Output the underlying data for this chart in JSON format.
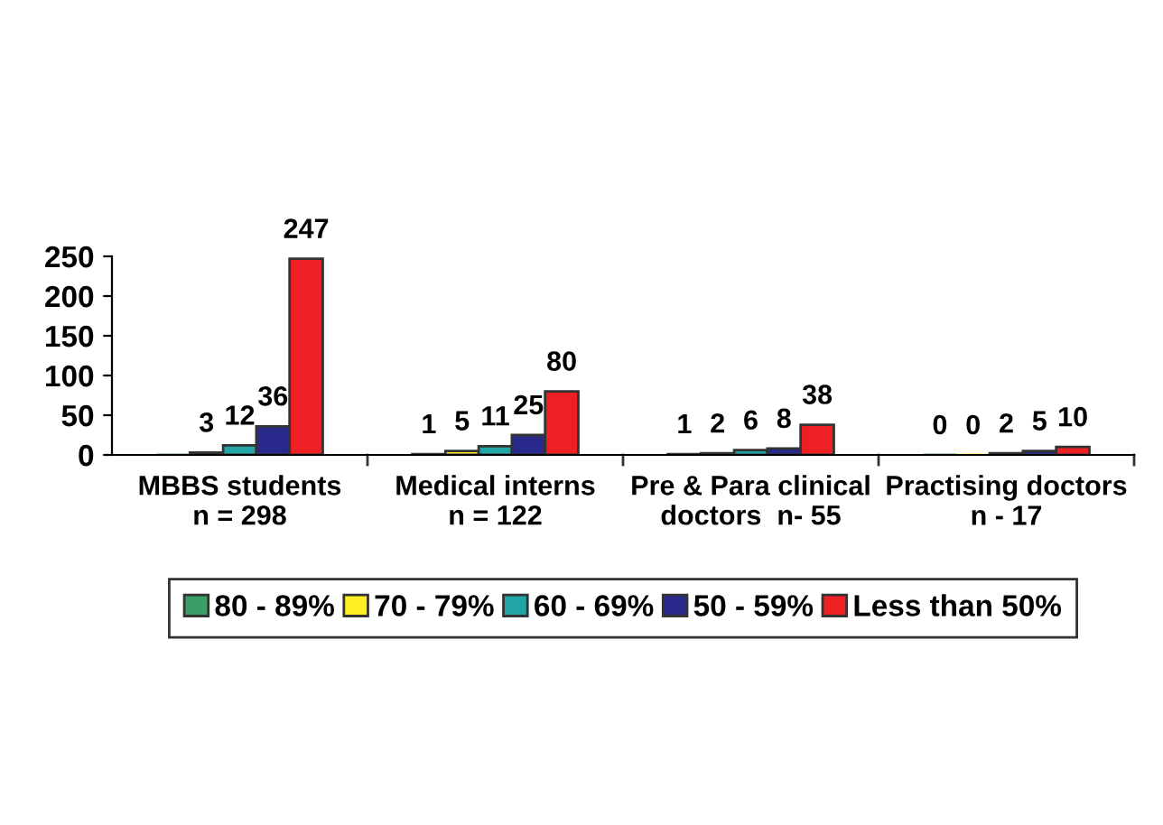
{
  "chart_data": {
    "type": "bar",
    "categories": [
      "MBBS students\nn = 298",
      "Medical interns\nn = 122",
      "Pre & Para clinical\ndoctors  n- 55",
      "Practising doctors\nn - 17"
    ],
    "series": [
      {
        "name": "80 - 89%",
        "color": "#3a9e68",
        "values": [
          0,
          1,
          1,
          0
        ],
        "value_labels": [
          null,
          "1",
          "1",
          "0"
        ]
      },
      {
        "name": "70 - 79%",
        "color": "#ffee22",
        "values": [
          3,
          5,
          2,
          0
        ],
        "value_labels": [
          "3",
          "5",
          "2",
          "0"
        ]
      },
      {
        "name": "60 - 69%",
        "color": "#22a5a5",
        "values": [
          12,
          11,
          6,
          2
        ],
        "value_labels": [
          "12",
          "11",
          "6",
          "2"
        ]
      },
      {
        "name": "50 - 59%",
        "color": "#2a2a8c",
        "values": [
          36,
          25,
          8,
          5
        ],
        "value_labels": [
          "36",
          "25",
          "8",
          "5"
        ]
      },
      {
        "name": "Less than 50%",
        "color": "#ee2024",
        "values": [
          247,
          80,
          38,
          10
        ],
        "value_labels": [
          "247",
          "80",
          "38",
          "10"
        ]
      }
    ],
    "ylim": [
      0,
      250
    ],
    "yticks": [
      0,
      50,
      100,
      150,
      200,
      250
    ],
    "grid": false,
    "legend": "bottom"
  }
}
